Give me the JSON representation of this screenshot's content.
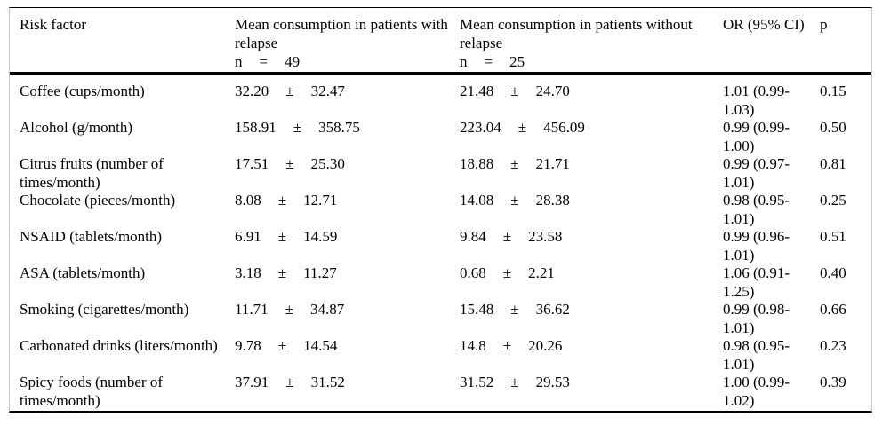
{
  "table": {
    "pm": "±",
    "header": {
      "risk_factor": "Risk factor",
      "with_relapse": {
        "title": "Mean consumption in patients with relapse",
        "n_label": "n",
        "equals": "=",
        "n_value": "49"
      },
      "without_relapse": {
        "title": "Mean consumption in patients without relapse",
        "n_label": "n",
        "equals": "=",
        "n_value": "25"
      },
      "or_ci": "OR (95% CI)",
      "p": "p"
    },
    "rows": [
      {
        "factor": "Coffee (cups/month)",
        "with_mean": "32.20",
        "with_sd": "32.47",
        "without_mean": "21.48",
        "without_sd": "24.70",
        "or_ci": "1.01 (0.99-1.03)",
        "p": "0.15"
      },
      {
        "factor": "Alcohol (g/month)",
        "with_mean": "158.91",
        "with_sd": "358.75",
        "without_mean": "223.04",
        "without_sd": "456.09",
        "or_ci": "0.99 (0.99-1.00)",
        "p": "0.50"
      },
      {
        "factor": "Citrus fruits (number of times/month)",
        "with_mean": "17.51",
        "with_sd": "25.30",
        "without_mean": "18.88",
        "without_sd": "21.71",
        "or_ci": "0.99 (0.97-1.01)",
        "p": "0.81"
      },
      {
        "factor": "Chocolate (pieces/month)",
        "with_mean": "8.08",
        "with_sd": "12.71",
        "without_mean": "14.08",
        "without_sd": "28.38",
        "or_ci": "0.98 (0.95-1.01)",
        "p": "0.25"
      },
      {
        "factor": "NSAID (tablets/month)",
        "with_mean": "6.91",
        "with_sd": "14.59",
        "without_mean": "9.84",
        "without_sd": "23.58",
        "or_ci": "0.99 (0.96-1.01)",
        "p": "0.51"
      },
      {
        "factor": "ASA (tablets/month)",
        "with_mean": "3.18",
        "with_sd": "11.27",
        "without_mean": "0.68",
        "without_sd": "2.21",
        "or_ci": "1.06 (0.91-1.25)",
        "p": "0.40"
      },
      {
        "factor": "Smoking (cigarettes/month)",
        "with_mean": "11.71",
        "with_sd": "34.87",
        "without_mean": "15.48",
        "without_sd": "36.62",
        "or_ci": "0.99 (0.98-1.01)",
        "p": "0.66"
      },
      {
        "factor": "Carbonated drinks (liters/month)",
        "with_mean": "9.78",
        "with_sd": "14.54",
        "without_mean": "14.8",
        "without_sd": "20.26",
        "or_ci": "0.98 (0.95-1.01)",
        "p": "0.23"
      },
      {
        "factor": "Spicy foods (number of times/month)",
        "with_mean": "37.91",
        "with_sd": "31.52",
        "without_mean": "31.52",
        "without_sd": "29.53",
        "or_ci": "1.00 (0.99-1.02)",
        "p": "0.39"
      }
    ]
  },
  "colors": {
    "rule": "#000000",
    "side_border": "#c9c9c9",
    "text": "#000000",
    "background": "#ffffff"
  }
}
